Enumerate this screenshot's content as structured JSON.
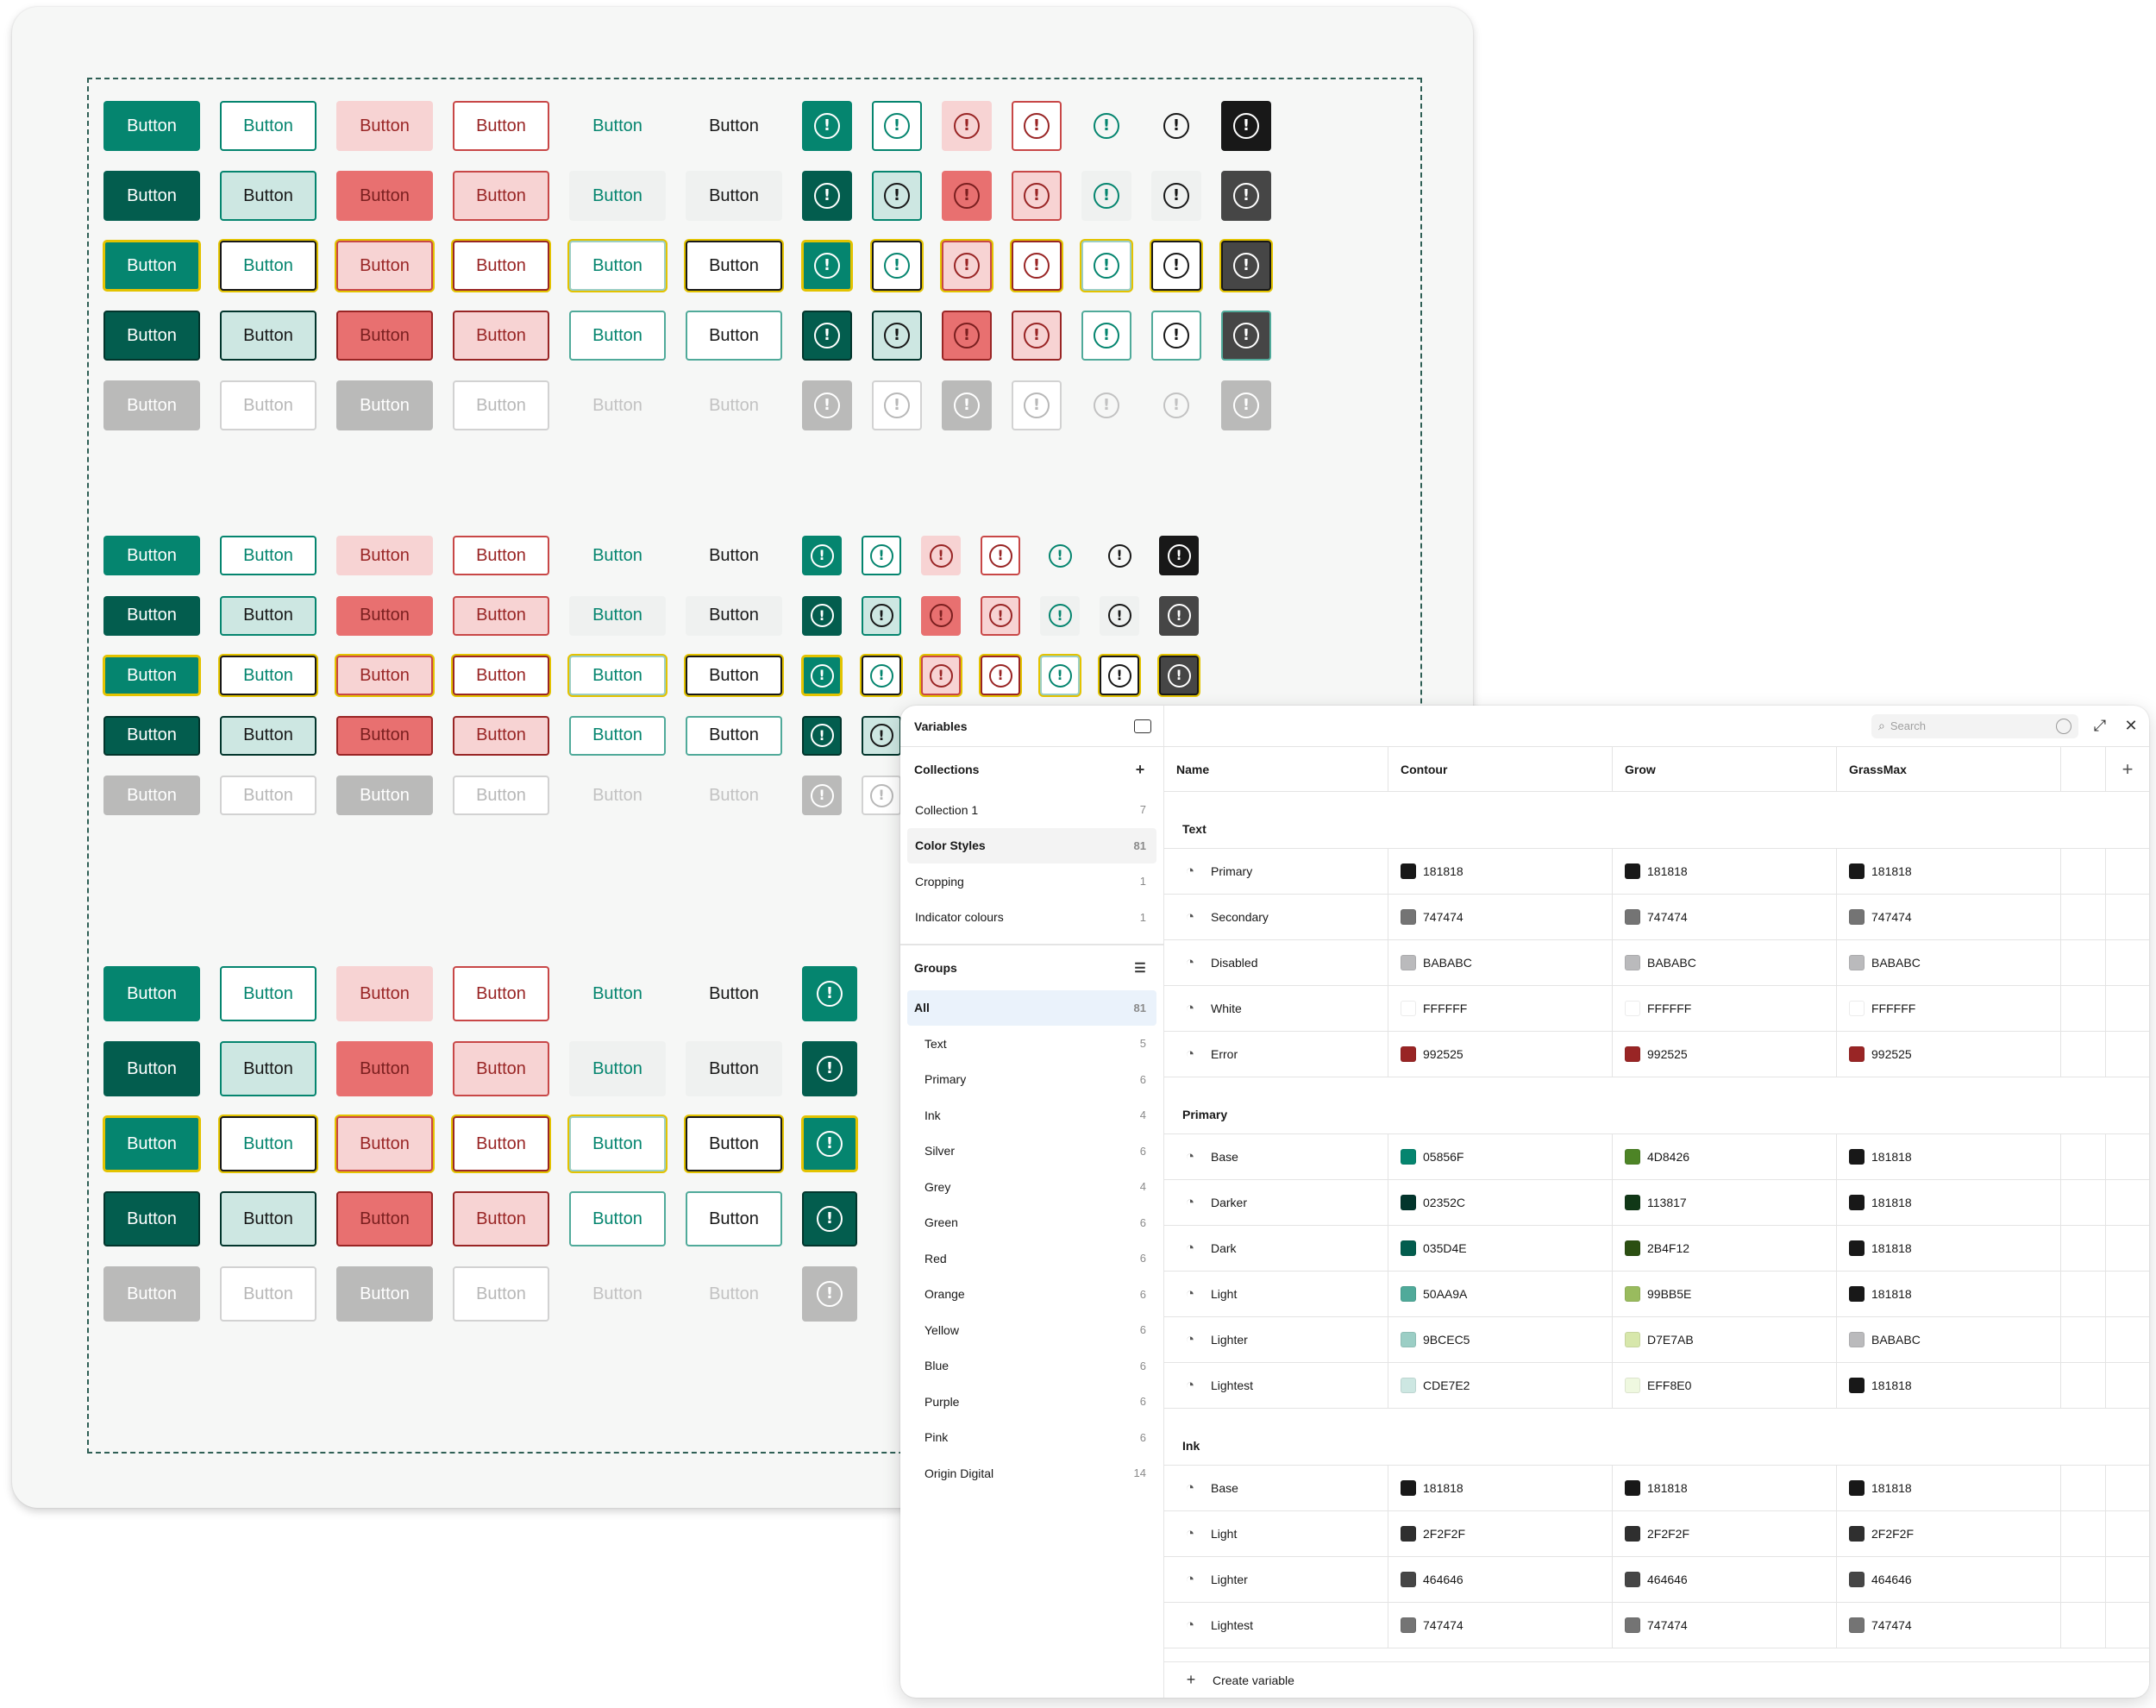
{
  "canvas": {
    "button_label": "Button"
  },
  "variables_panel": {
    "title": "Variables",
    "search_placeholder": "Search",
    "collections_label": "Collections",
    "collections": [
      {
        "name": "Collection 1",
        "count": "7"
      },
      {
        "name": "Color Styles",
        "count": "81"
      },
      {
        "name": "Cropping",
        "count": "1"
      },
      {
        "name": "Indicator colours",
        "count": "1"
      }
    ],
    "groups_label": "Groups",
    "groups": [
      {
        "name": "All",
        "count": "81"
      },
      {
        "name": "Text",
        "count": "5"
      },
      {
        "name": "Primary",
        "count": "6"
      },
      {
        "name": "Ink",
        "count": "4"
      },
      {
        "name": "Silver",
        "count": "6"
      },
      {
        "name": "Grey",
        "count": "4"
      },
      {
        "name": "Green",
        "count": "6"
      },
      {
        "name": "Red",
        "count": "6"
      },
      {
        "name": "Orange",
        "count": "6"
      },
      {
        "name": "Yellow",
        "count": "6"
      },
      {
        "name": "Blue",
        "count": "6"
      },
      {
        "name": "Purple",
        "count": "6"
      },
      {
        "name": "Pink",
        "count": "6"
      },
      {
        "name": "Origin Digital",
        "count": "14"
      }
    ],
    "columns": [
      "Name",
      "Contour",
      "Grow",
      "GrassMax"
    ],
    "table_groups": [
      {
        "title": "Text",
        "rows": [
          {
            "name": "Primary",
            "values": [
              "181818",
              "181818",
              "181818"
            ]
          },
          {
            "name": "Secondary",
            "values": [
              "747474",
              "747474",
              "747474"
            ]
          },
          {
            "name": "Disabled",
            "values": [
              "BABABC",
              "BABABC",
              "BABABC"
            ]
          },
          {
            "name": "White",
            "values": [
              "FFFFFF",
              "FFFFFF",
              "FFFFFF"
            ]
          },
          {
            "name": "Error",
            "values": [
              "992525",
              "992525",
              "992525"
            ]
          }
        ]
      },
      {
        "title": "Primary",
        "rows": [
          {
            "name": "Base",
            "values": [
              "05856F",
              "4D8426",
              "181818"
            ]
          },
          {
            "name": "Darker",
            "values": [
              "02352C",
              "113817",
              "181818"
            ]
          },
          {
            "name": "Dark",
            "values": [
              "035D4E",
              "2B4F12",
              "181818"
            ]
          },
          {
            "name": "Light",
            "values": [
              "50AA9A",
              "99BB5E",
              "181818"
            ]
          },
          {
            "name": "Lighter",
            "values": [
              "9BCEC5",
              "D7E7AB",
              "BABABC"
            ]
          },
          {
            "name": "Lightest",
            "values": [
              "CDE7E2",
              "EFF8E0",
              "181818"
            ]
          }
        ]
      },
      {
        "title": "Ink",
        "rows": [
          {
            "name": "Base",
            "values": [
              "181818",
              "181818",
              "181818"
            ]
          },
          {
            "name": "Light",
            "values": [
              "2F2F2F",
              "2F2F2F",
              "2F2F2F"
            ]
          },
          {
            "name": "Lighter",
            "values": [
              "464646",
              "464646",
              "464646"
            ]
          },
          {
            "name": "Lightest",
            "values": [
              "747474",
              "747474",
              "747474"
            ]
          }
        ]
      }
    ],
    "create_variable_label": "Create variable"
  },
  "icons": {
    "exclamation_glyph": "!",
    "plus_glyph": "+",
    "close_glyph": "✕",
    "expand_glyph": "⤢",
    "palette_glyph": "◔"
  },
  "colors": {
    "primary": "#05856f",
    "primary_dark": "#035d4e",
    "primary_darker": "#02352c",
    "error": "#992525",
    "focus": "#e3c300",
    "ink": "#181818"
  }
}
